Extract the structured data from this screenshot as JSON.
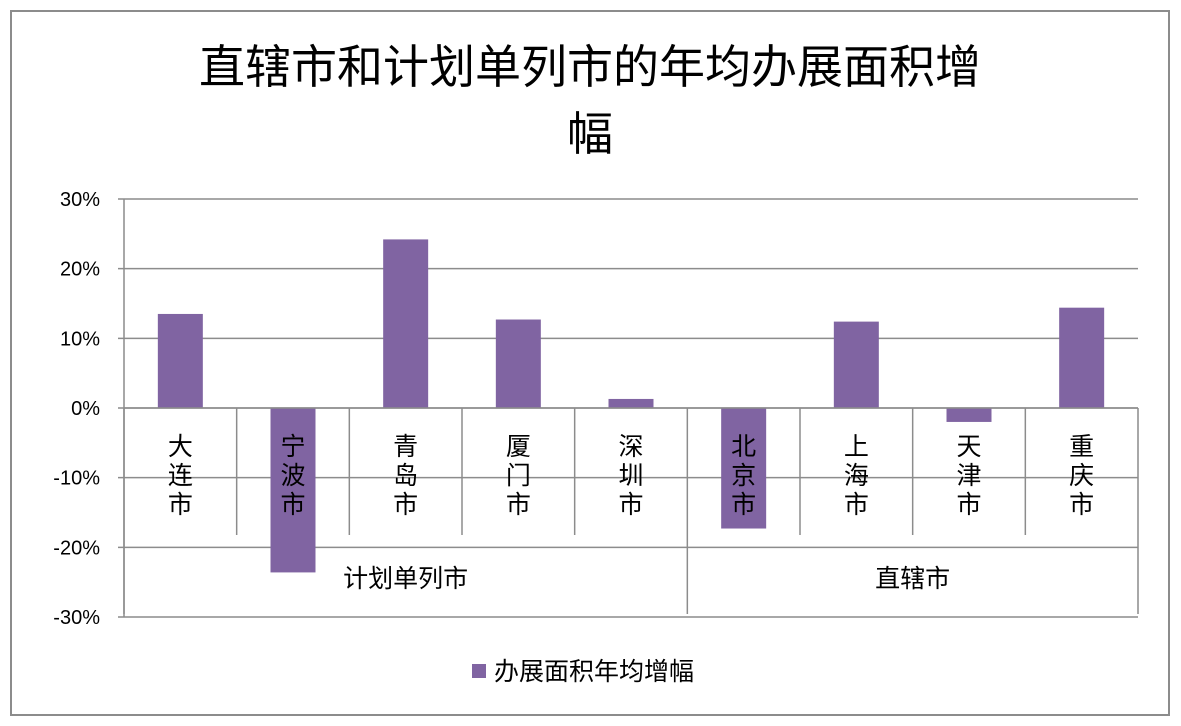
{
  "chart_data": {
    "type": "bar",
    "title_lines": [
      "直辖市和计划单列市的年均办展面积增",
      "幅"
    ],
    "y_axis": {
      "min": -30,
      "max": 30,
      "step": 10,
      "format": "percent",
      "tick_labels": [
        "30%",
        "20%",
        "10%",
        "0%",
        "-10%",
        "-20%",
        "-30%"
      ]
    },
    "groups": [
      {
        "name": "计划单列市",
        "categories": [
          "大连市",
          "宁波市",
          "青岛市",
          "厦门市",
          "深圳市"
        ]
      },
      {
        "name": "直辖市",
        "categories": [
          "北京市",
          "上海市",
          "天津市",
          "重庆市"
        ]
      }
    ],
    "categories": [
      "大连市",
      "宁波市",
      "青岛市",
      "厦门市",
      "深圳市",
      "北京市",
      "上海市",
      "天津市",
      "重庆市"
    ],
    "series": [
      {
        "name": "办展面积年均增幅",
        "color": "#8064A2",
        "values": [
          13.5,
          -23.6,
          24.2,
          12.7,
          1.3,
          -17.3,
          12.4,
          -2.0,
          14.4
        ]
      }
    ],
    "grid": true,
    "legend_position": "bottom"
  }
}
